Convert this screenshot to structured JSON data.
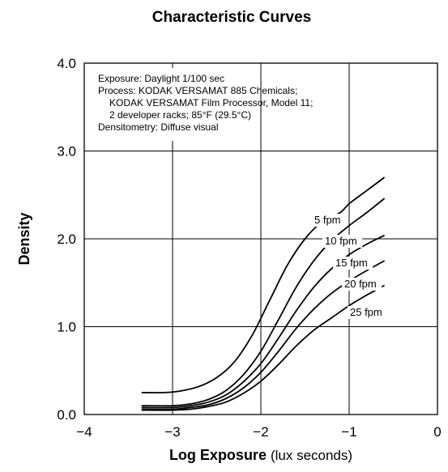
{
  "chart_data": {
    "type": "line",
    "title": "Characteristic Curves",
    "xlabel": "Log Exposure",
    "xlabel_unit": "(lux seconds)",
    "ylabel": "Density",
    "xlim": [
      -4,
      0
    ],
    "ylim": [
      0,
      4
    ],
    "x_ticks": [
      "−4",
      "−3",
      "−2",
      "−1",
      "0"
    ],
    "y_ticks": [
      "0.0",
      "1.0",
      "2.0",
      "3.0",
      "4.0"
    ],
    "grid": true,
    "info_box": [
      "Exposure: Daylight  1/100 sec",
      "Process: KODAK VERSAMAT 885 Chemicals;",
      "KODAK VERSAMAT Film Processor, Model 11;",
      "2 developer racks; 85°F (29.5°C)",
      "Densitometry: Diffuse visual"
    ],
    "series": [
      {
        "name": "5 fpm",
        "x": [
          -3.35,
          -3.1,
          -2.9,
          -2.7,
          -2.5,
          -2.3,
          -2.1,
          -1.9,
          -1.7,
          -1.5,
          -1.3,
          -1.1,
          -1.0,
          -0.8,
          -0.6
        ],
        "y": [
          0.25,
          0.25,
          0.27,
          0.32,
          0.42,
          0.6,
          0.9,
          1.3,
          1.7,
          2.0,
          2.2,
          2.3,
          2.4,
          2.55,
          2.7
        ]
      },
      {
        "name": "10 fpm",
        "x": [
          -3.35,
          -3.0,
          -2.8,
          -2.6,
          -2.4,
          -2.2,
          -2.0,
          -1.8,
          -1.6,
          -1.4,
          -1.2,
          -1.0,
          -0.8,
          -0.6
        ],
        "y": [
          0.1,
          0.1,
          0.12,
          0.17,
          0.27,
          0.45,
          0.72,
          1.08,
          1.45,
          1.75,
          1.98,
          2.15,
          2.3,
          2.46
        ]
      },
      {
        "name": "15 fpm",
        "x": [
          -3.35,
          -3.0,
          -2.8,
          -2.6,
          -2.4,
          -2.2,
          -2.0,
          -1.8,
          -1.6,
          -1.4,
          -1.2,
          -1.0,
          -0.8,
          -0.6
        ],
        "y": [
          0.08,
          0.08,
          0.1,
          0.14,
          0.22,
          0.37,
          0.58,
          0.87,
          1.18,
          1.45,
          1.66,
          1.82,
          1.94,
          2.04
        ]
      },
      {
        "name": "20 fpm",
        "x": [
          -3.35,
          -3.0,
          -2.8,
          -2.6,
          -2.4,
          -2.2,
          -2.0,
          -1.8,
          -1.6,
          -1.4,
          -1.2,
          -1.0,
          -0.8,
          -0.6
        ],
        "y": [
          0.06,
          0.06,
          0.08,
          0.11,
          0.18,
          0.3,
          0.48,
          0.72,
          0.98,
          1.2,
          1.38,
          1.52,
          1.64,
          1.75
        ]
      },
      {
        "name": "25 fpm",
        "x": [
          -3.35,
          -3.0,
          -2.8,
          -2.6,
          -2.4,
          -2.2,
          -2.0,
          -1.8,
          -1.6,
          -1.4,
          -1.2,
          -1.0,
          -0.8,
          -0.6
        ],
        "y": [
          0.05,
          0.05,
          0.06,
          0.09,
          0.14,
          0.24,
          0.38,
          0.57,
          0.78,
          0.96,
          1.1,
          1.24,
          1.36,
          1.47
        ]
      }
    ]
  }
}
